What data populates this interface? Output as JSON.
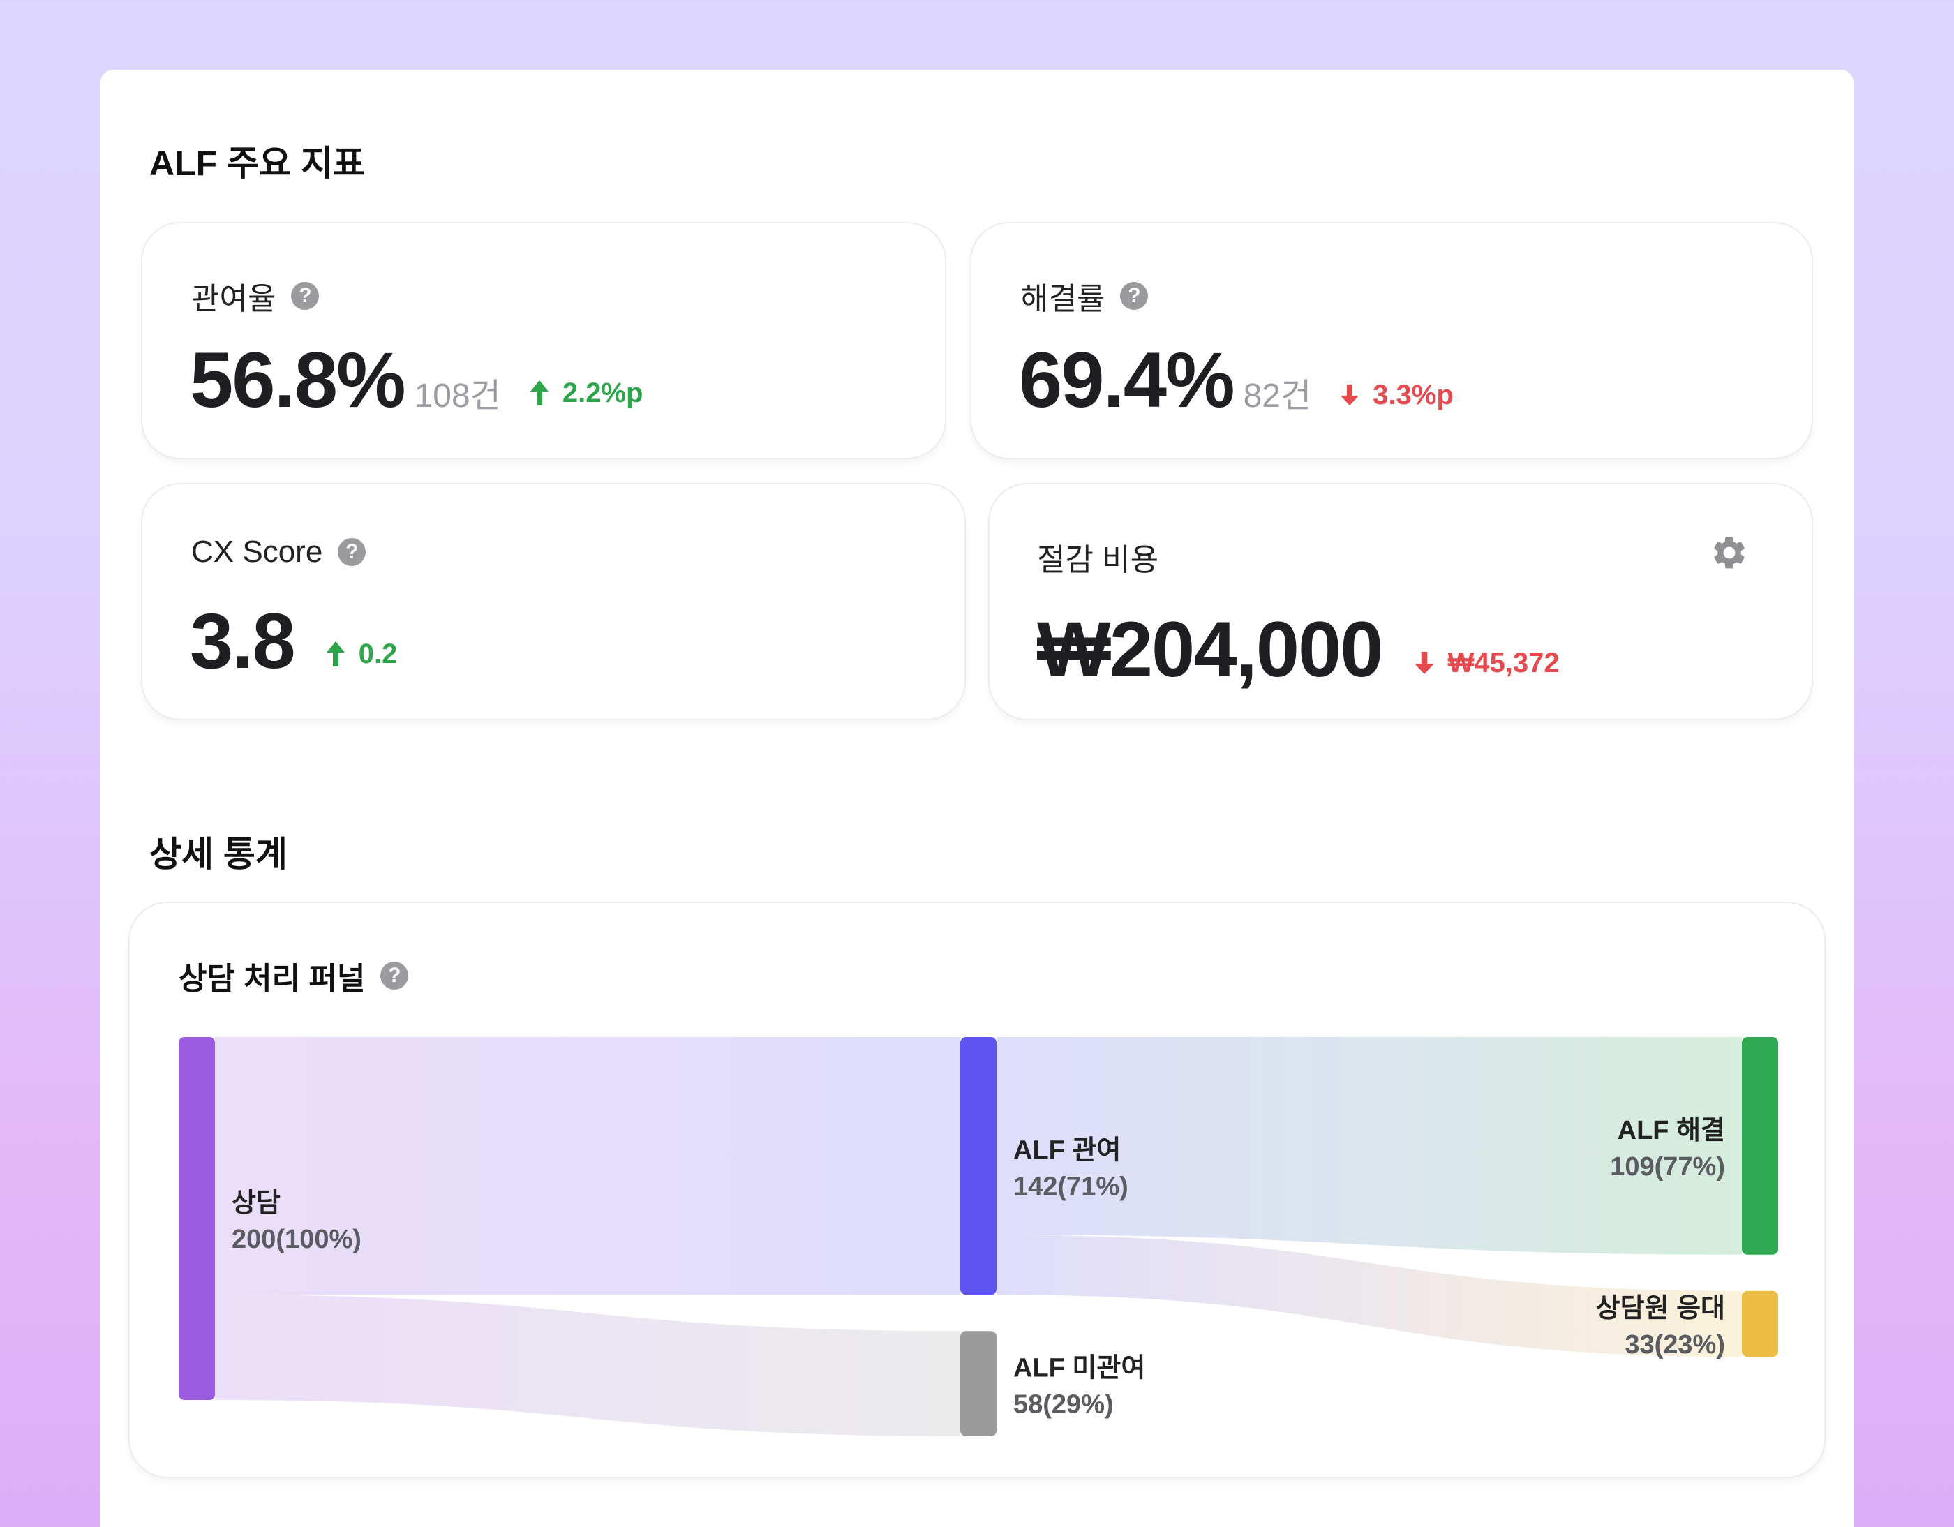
{
  "sections": {
    "metrics_title": "ALF 주요 지표",
    "detail_title": "상세 통계"
  },
  "metrics": [
    {
      "label": "관여율",
      "value": "56.8%",
      "count": "108건",
      "delta": "2.2%p",
      "direction": "up"
    },
    {
      "label": "해결률",
      "value": "69.4%",
      "count": "82건",
      "delta": "3.3%p",
      "direction": "down"
    },
    {
      "label": "CX Score",
      "value": "3.8",
      "count": "",
      "delta": "0.2",
      "direction": "up"
    },
    {
      "label": "절감 비용",
      "value": "₩204,000",
      "count": "",
      "delta": "₩45,372",
      "direction": "down"
    }
  ],
  "funnel": {
    "title": "상담 처리 퍼널",
    "nodes": [
      {
        "name": "상담",
        "count": 200,
        "label": "200(100%)",
        "color": "#9a5ce0"
      },
      {
        "name": "ALF 관여",
        "count": 142,
        "label": "142(71%)",
        "color": "#5f55f0"
      },
      {
        "name": "ALF 미관여",
        "count": 58,
        "label": "58(29%)",
        "color": "#9b9b9b"
      },
      {
        "name": "ALF 해결",
        "count": 109,
        "label": "109(77%)",
        "color": "#2fa852"
      },
      {
        "name": "상담원 응대",
        "count": 33,
        "label": "33(23%)",
        "color": "#ecbf44"
      }
    ],
    "links": [
      {
        "source": "상담",
        "target": "ALF 관여",
        "value": 142
      },
      {
        "source": "상담",
        "target": "ALF 미관여",
        "value": 58
      },
      {
        "source": "ALF 관여",
        "target": "ALF 해결",
        "value": 109
      },
      {
        "source": "ALF 관여",
        "target": "상담원 응대",
        "value": 33
      }
    ]
  },
  "colors": {
    "up": "#2ea54a",
    "down": "#e5484d",
    "help_icon": "#9a9a9f"
  },
  "icons": [
    "help-icon",
    "arrow-up-icon",
    "arrow-down-icon",
    "gear-icon"
  ]
}
